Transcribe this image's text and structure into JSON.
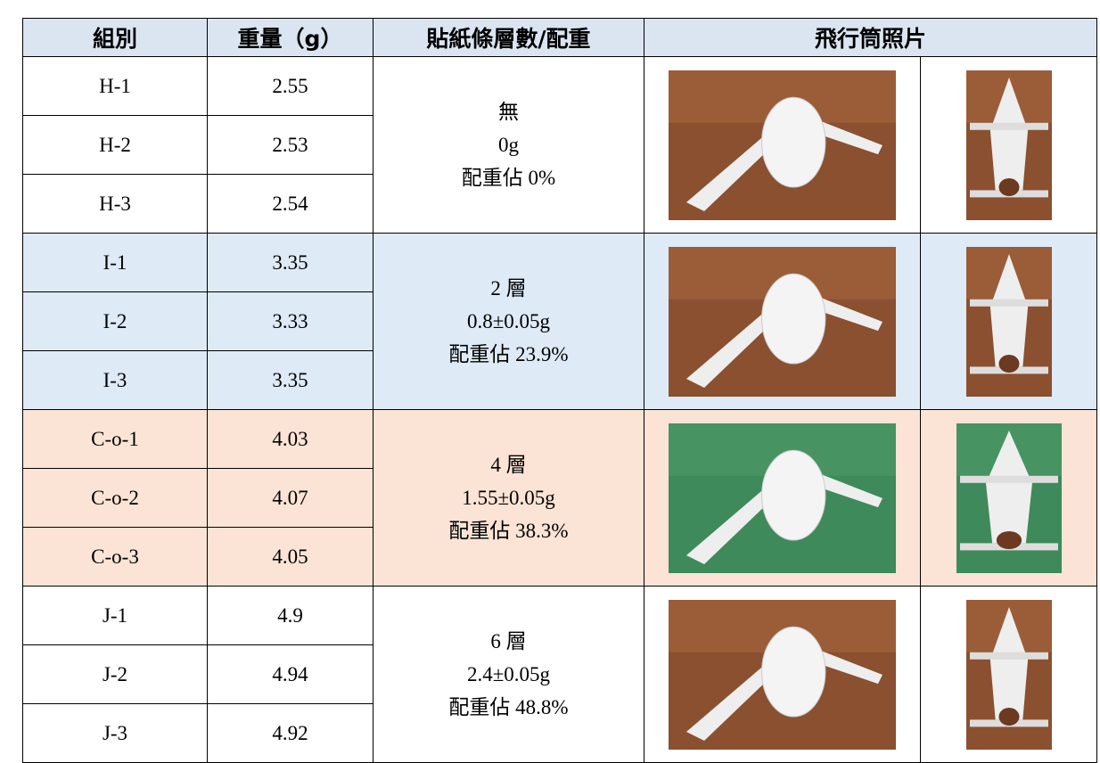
{
  "table": {
    "headers": [
      "組別",
      "重量（g）",
      "貼紙條層數/配重",
      "飛行筒照片"
    ],
    "groups": [
      {
        "rows": [
          [
            "H-1",
            "2.55"
          ],
          [
            "H-2",
            "2.53"
          ],
          [
            "H-3",
            "2.54"
          ]
        ],
        "layers": [
          "無",
          "0g",
          "配重佔 0%"
        ]
      },
      {
        "rows": [
          [
            "I-1",
            "3.35"
          ],
          [
            "I-2",
            "3.33"
          ],
          [
            "I-3",
            "3.35"
          ]
        ],
        "layers": [
          "2 層",
          "0.8±0.05g",
          "配重佔 23.9%"
        ]
      },
      {
        "rows": [
          [
            "C-o-1",
            "4.03"
          ],
          [
            "C-o-2",
            "4.07"
          ],
          [
            "C-o-3",
            "4.05"
          ]
        ],
        "layers": [
          "4 層",
          "1.55±0.05g",
          "配重佔 38.3%"
        ]
      },
      {
        "rows": [
          [
            "J-1",
            "4.9"
          ],
          [
            "J-2",
            "4.94"
          ],
          [
            "J-3",
            "4.92"
          ]
        ],
        "layers": [
          "6 層",
          "2.4±0.05g",
          "配重佔 48.8%"
        ]
      }
    ]
  }
}
